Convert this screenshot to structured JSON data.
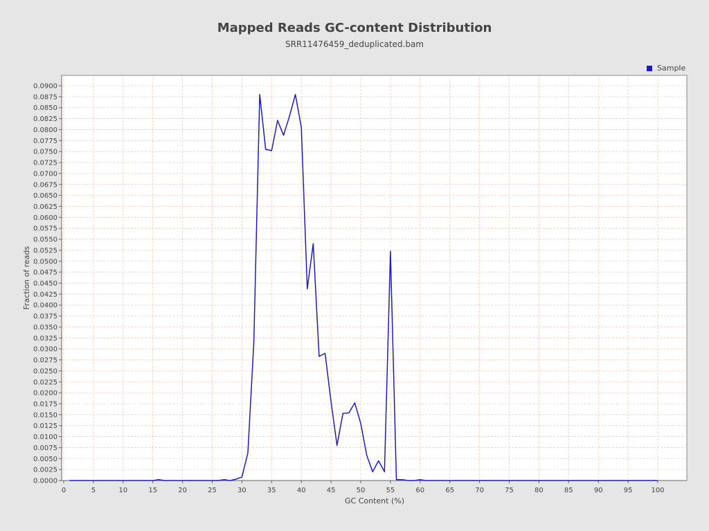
{
  "chart_data": {
    "type": "line",
    "title": "Mapped Reads GC-content Distribution",
    "subtitle": "SRR11476459_deduplicated.bam",
    "xlabel": "GC Content (%)",
    "ylabel": "Fraction of reads",
    "xlim": [
      0,
      105
    ],
    "ylim": [
      0,
      0.0915
    ],
    "x_ticks": [
      0,
      5,
      10,
      15,
      20,
      25,
      30,
      35,
      40,
      45,
      50,
      55,
      60,
      65,
      70,
      75,
      80,
      85,
      90,
      95,
      100
    ],
    "y_ticks": [
      "0.0000",
      "0.0025",
      "0.0050",
      "0.0075",
      "0.0100",
      "0.0125",
      "0.0150",
      "0.0175",
      "0.0200",
      "0.0225",
      "0.0250",
      "0.0275",
      "0.0300",
      "0.0325",
      "0.0350",
      "0.0375",
      "0.0400",
      "0.0425",
      "0.0450",
      "0.0475",
      "0.0500",
      "0.0525",
      "0.0550",
      "0.0575",
      "0.0600",
      "0.0625",
      "0.0650",
      "0.0675",
      "0.0700",
      "0.0725",
      "0.0750",
      "0.0775",
      "0.0800",
      "0.0825",
      "0.0850",
      "0.0875",
      "0.0900"
    ],
    "grid": true,
    "legend_position": "top-right",
    "colors": {
      "background": "#e6e6e6",
      "plot_background": "#ffffff",
      "grid": "#f0c8b4",
      "series": "#1a1acc",
      "axis": "#666666"
    },
    "series": [
      {
        "name": "Sample",
        "x": [
          1,
          2,
          3,
          4,
          5,
          6,
          7,
          8,
          9,
          10,
          11,
          12,
          13,
          14,
          15,
          16,
          17,
          18,
          19,
          20,
          21,
          22,
          23,
          24,
          25,
          26,
          27,
          28,
          29,
          30,
          31,
          32,
          33,
          34,
          35,
          36,
          37,
          38,
          39,
          40,
          41,
          42,
          43,
          44,
          45,
          46,
          47,
          48,
          49,
          50,
          51,
          52,
          53,
          54,
          55,
          56,
          57,
          58,
          59,
          60,
          61,
          62,
          63,
          64,
          65,
          66,
          67,
          68,
          69,
          70,
          71,
          72,
          73,
          74,
          75,
          76,
          77,
          78,
          79,
          80,
          81,
          82,
          83,
          84,
          85,
          86,
          87,
          88,
          89,
          90,
          91,
          92,
          93,
          94,
          95,
          96,
          97,
          98,
          99,
          100
        ],
        "values": [
          0,
          0,
          0,
          0,
          0,
          0,
          0,
          0,
          0,
          0,
          0,
          0,
          0,
          0,
          0,
          0.0002,
          0,
          0,
          0,
          0,
          0,
          0,
          0,
          0,
          0,
          0,
          0.0002,
          0,
          0.0003,
          0.0008,
          0.0063,
          0.0315,
          0.088,
          0.0755,
          0.0752,
          0.0821,
          0.0787,
          0.083,
          0.088,
          0.0805,
          0.0437,
          0.054,
          0.0283,
          0.029,
          0.018,
          0.008,
          0.0153,
          0.0154,
          0.0177,
          0.013,
          0.0058,
          0.002,
          0.0045,
          0.002,
          0.0523,
          0.0002,
          0.0002,
          0,
          0,
          0.0002,
          0,
          0,
          0,
          0,
          0,
          0,
          0,
          0,
          0,
          0,
          0,
          0,
          0,
          0,
          0,
          0,
          0,
          0,
          0,
          0,
          0,
          0,
          0,
          0,
          0,
          0,
          0,
          0,
          0,
          0,
          0,
          0,
          0,
          0,
          0,
          0,
          0,
          0,
          0,
          0
        ]
      }
    ]
  }
}
